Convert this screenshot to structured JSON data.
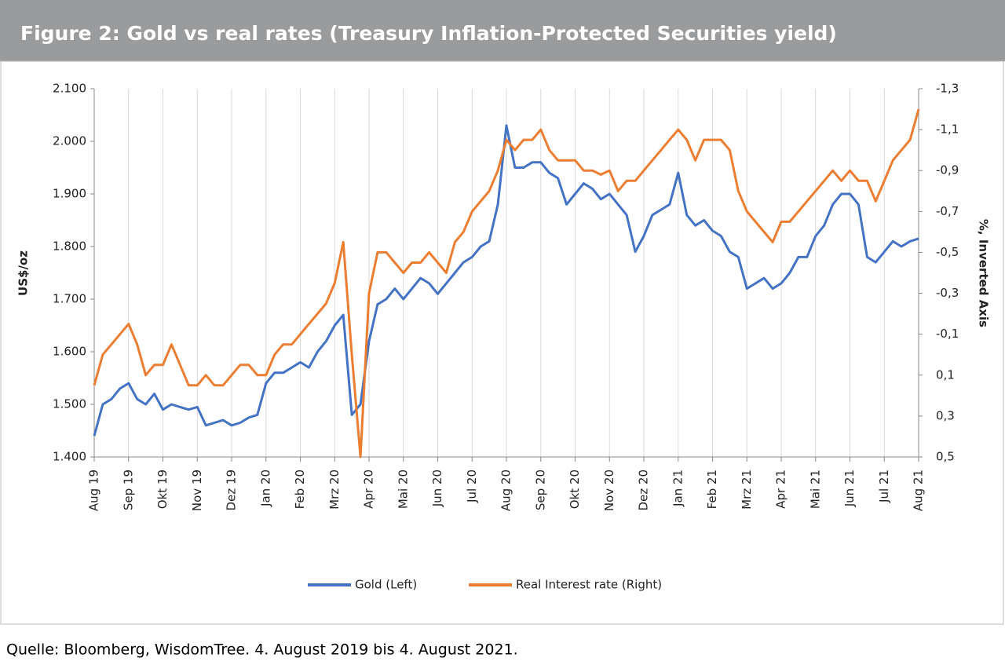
{
  "chart_data": {
    "type": "line",
    "title": "Figure 2: Gold vs real rates (Treasury Inflation-Protected Securities yield)",
    "ylabel": "US$/oz",
    "y2label": "%, Inverted Axis",
    "categories": [
      "Aug 19",
      null,
      null,
      null,
      "Sep 19",
      null,
      null,
      null,
      "Okt 19",
      null,
      null,
      null,
      "Nov 19",
      null,
      null,
      null,
      "Dez 19",
      null,
      null,
      null,
      "Jan 20",
      null,
      null,
      null,
      "Feb 20",
      null,
      null,
      null,
      "Mrz 20",
      null,
      null,
      null,
      "Apr 20",
      null,
      null,
      null,
      "Mai 20",
      null,
      null,
      null,
      "Jun 20",
      null,
      null,
      null,
      "Jul 20",
      null,
      null,
      null,
      "Aug 20",
      null,
      null,
      null,
      "Sep 20",
      null,
      null,
      null,
      "Okt 20",
      null,
      null,
      null,
      "Nov 20",
      null,
      null,
      null,
      "Dez 20",
      null,
      null,
      null,
      "Jan 21",
      null,
      null,
      null,
      "Feb 21",
      null,
      null,
      null,
      "Mrz 21",
      null,
      null,
      null,
      "Apr 21",
      null,
      null,
      null,
      "Mai 21",
      null,
      null,
      null,
      "Jun 21",
      null,
      null,
      null,
      "Jul 21",
      null,
      null,
      null,
      "Aug 21"
    ],
    "series": [
      {
        "name": "Gold (Left)",
        "color": "#4472c4",
        "axis": "y",
        "values": [
          1440,
          1500,
          1510,
          1530,
          1540,
          1510,
          1500,
          1520,
          1490,
          1500,
          1495,
          1490,
          1495,
          1460,
          1465,
          1470,
          1460,
          1465,
          1475,
          1480,
          1540,
          1560,
          1560,
          1570,
          1580,
          1570,
          1600,
          1620,
          1650,
          1670,
          1480,
          1500,
          1620,
          1690,
          1700,
          1720,
          1700,
          1720,
          1740,
          1730,
          1710,
          1730,
          1750,
          1770,
          1780,
          1800,
          1810,
          1880,
          2030,
          1950,
          1950,
          1960,
          1960,
          1940,
          1930,
          1880,
          1900,
          1920,
          1910,
          1890,
          1900,
          1880,
          1860,
          1790,
          1820,
          1860,
          1870,
          1880,
          1940,
          1860,
          1840,
          1850,
          1830,
          1820,
          1790,
          1780,
          1720,
          1730,
          1740,
          1720,
          1730,
          1750,
          1780,
          1780,
          1820,
          1840,
          1880,
          1900,
          1900,
          1880,
          1780,
          1770,
          1790,
          1810,
          1800,
          1810,
          1815
        ]
      },
      {
        "name": "Real Interest rate (Right)",
        "color": "#ed7d31",
        "axis": "y2",
        "values": [
          0.15,
          0.0,
          -0.05,
          -0.1,
          -0.15,
          -0.05,
          0.1,
          0.05,
          0.05,
          -0.05,
          0.05,
          0.15,
          0.15,
          0.1,
          0.15,
          0.15,
          0.1,
          0.05,
          0.05,
          0.1,
          0.1,
          0.0,
          -0.05,
          -0.05,
          -0.1,
          -0.15,
          -0.2,
          -0.25,
          -0.35,
          -0.55,
          0.0,
          0.5,
          -0.3,
          -0.5,
          -0.5,
          -0.45,
          -0.4,
          -0.45,
          -0.45,
          -0.5,
          -0.45,
          -0.4,
          -0.55,
          -0.6,
          -0.7,
          -0.75,
          -0.8,
          -0.9,
          -1.05,
          -1.0,
          -1.05,
          -1.05,
          -1.1,
          -1.0,
          -0.95,
          -0.95,
          -0.95,
          -0.9,
          -0.9,
          -0.88,
          -0.9,
          -0.8,
          -0.85,
          -0.85,
          -0.9,
          -0.95,
          -1.0,
          -1.05,
          -1.1,
          -1.05,
          -0.95,
          -1.05,
          -1.05,
          -1.05,
          -1.0,
          -0.8,
          -0.7,
          -0.65,
          -0.6,
          -0.55,
          -0.65,
          -0.65,
          -0.7,
          -0.75,
          -0.8,
          -0.85,
          -0.9,
          -0.85,
          -0.9,
          -0.85,
          -0.85,
          -0.75,
          -0.85,
          -0.95,
          -1.0,
          -1.05,
          -1.2
        ]
      }
    ],
    "ylim": [
      1400,
      2100
    ],
    "yticks": [
      {
        "value": 1400,
        "label": "1.400"
      },
      {
        "value": 1500,
        "label": "1.500"
      },
      {
        "value": 1600,
        "label": "1.600"
      },
      {
        "value": 1700,
        "label": "1.700"
      },
      {
        "value": 1800,
        "label": "1.800"
      },
      {
        "value": 1900,
        "label": "1.900"
      },
      {
        "value": 2000,
        "label": "2.000"
      },
      {
        "value": 2100,
        "label": "2.100"
      }
    ],
    "y2lim": [
      0.5,
      -1.3
    ],
    "y2ticks": [
      {
        "value": 0.5,
        "label": "0,5"
      },
      {
        "value": 0.3,
        "label": "0,3"
      },
      {
        "value": 0.1,
        "label": "0,1"
      },
      {
        "value": -0.1,
        "label": "-0,1"
      },
      {
        "value": -0.3,
        "label": "-0,3"
      },
      {
        "value": -0.5,
        "label": "-0,5"
      },
      {
        "value": -0.7,
        "label": "-0,7"
      },
      {
        "value": -0.9,
        "label": "-0,9"
      },
      {
        "value": -1.1,
        "label": "-1,1"
      },
      {
        "value": -1.3,
        "label": "-1,3"
      }
    ],
    "grid": "x",
    "legend": "bottom"
  },
  "source": "Quelle: Bloomberg, WisdomTree. 4. August 2019 bis 4. August 2021."
}
